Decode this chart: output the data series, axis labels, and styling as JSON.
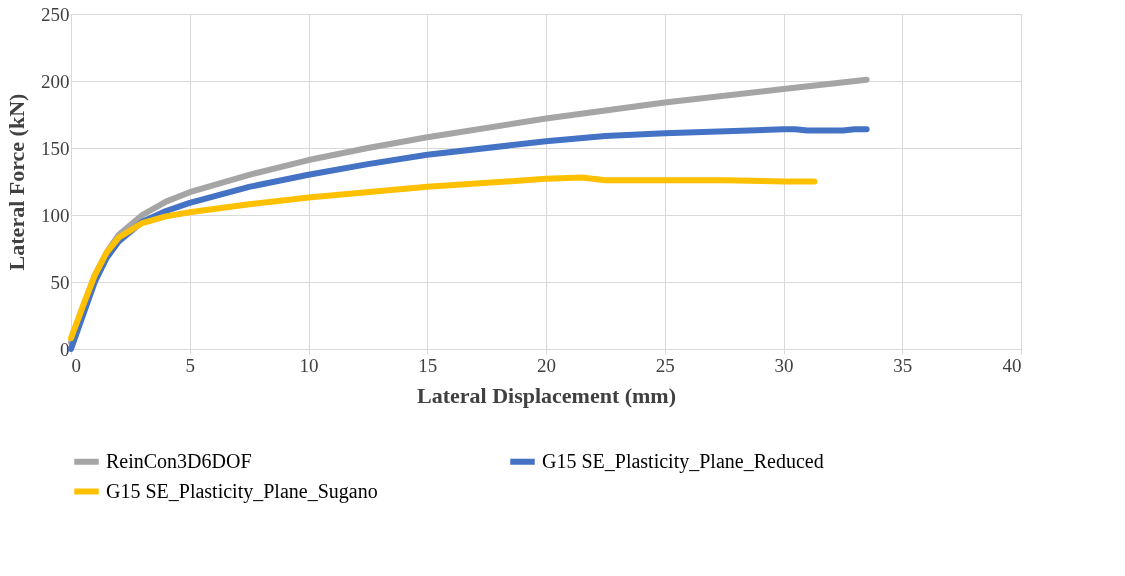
{
  "chart_data": {
    "type": "line",
    "xlabel": "Lateral Displacement (mm)",
    "ylabel": "Lateral Force (kN)",
    "xlim": [
      0,
      40
    ],
    "xticks": [
      0,
      5,
      10,
      15,
      20,
      25,
      30,
      35,
      40
    ],
    "ylim": [
      0,
      250
    ],
    "yticks": [
      0,
      50,
      100,
      150,
      200,
      250
    ],
    "grid": true,
    "legend": "bottom",
    "marker": "none",
    "line_style": "solid",
    "series": [
      {
        "name": "ReinCon3D6DOF",
        "color": "#a5a5a5",
        "x": [
          0,
          0.5,
          1,
          1.5,
          2,
          3,
          4,
          5,
          7.5,
          10,
          12.5,
          15,
          20,
          25,
          30,
          33.5
        ],
        "values": [
          5,
          30,
          55,
          72,
          85,
          100,
          110,
          117,
          130,
          141,
          150,
          158,
          172,
          184,
          194,
          201
        ]
      },
      {
        "name": "G15 SE_Plasticity_Plane_Reduced",
        "color": "#4472c4",
        "x": [
          0,
          0.5,
          1,
          1.5,
          2,
          3,
          4,
          5,
          7.5,
          10,
          12.5,
          15,
          20,
          22.5,
          25,
          30,
          30.5,
          31,
          32.5,
          33,
          33.5
        ],
        "values": [
          0,
          25,
          50,
          68,
          80,
          95,
          103,
          109,
          121,
          130,
          138,
          145,
          155,
          159,
          161,
          164,
          164,
          163,
          163,
          164,
          164
        ]
      },
      {
        "name": "G15 SE_Plasticity_Plane_Sugano",
        "color": "#ffc000",
        "x": [
          0,
          0.5,
          1,
          1.5,
          2,
          3,
          4,
          5,
          7.5,
          10,
          15,
          20,
          21.5,
          22.5,
          25,
          27.5,
          30,
          31.3
        ],
        "values": [
          8,
          32,
          55,
          72,
          83,
          94,
          99,
          102,
          108,
          113,
          121,
          127,
          128,
          126,
          126,
          126,
          125,
          125
        ]
      }
    ]
  }
}
